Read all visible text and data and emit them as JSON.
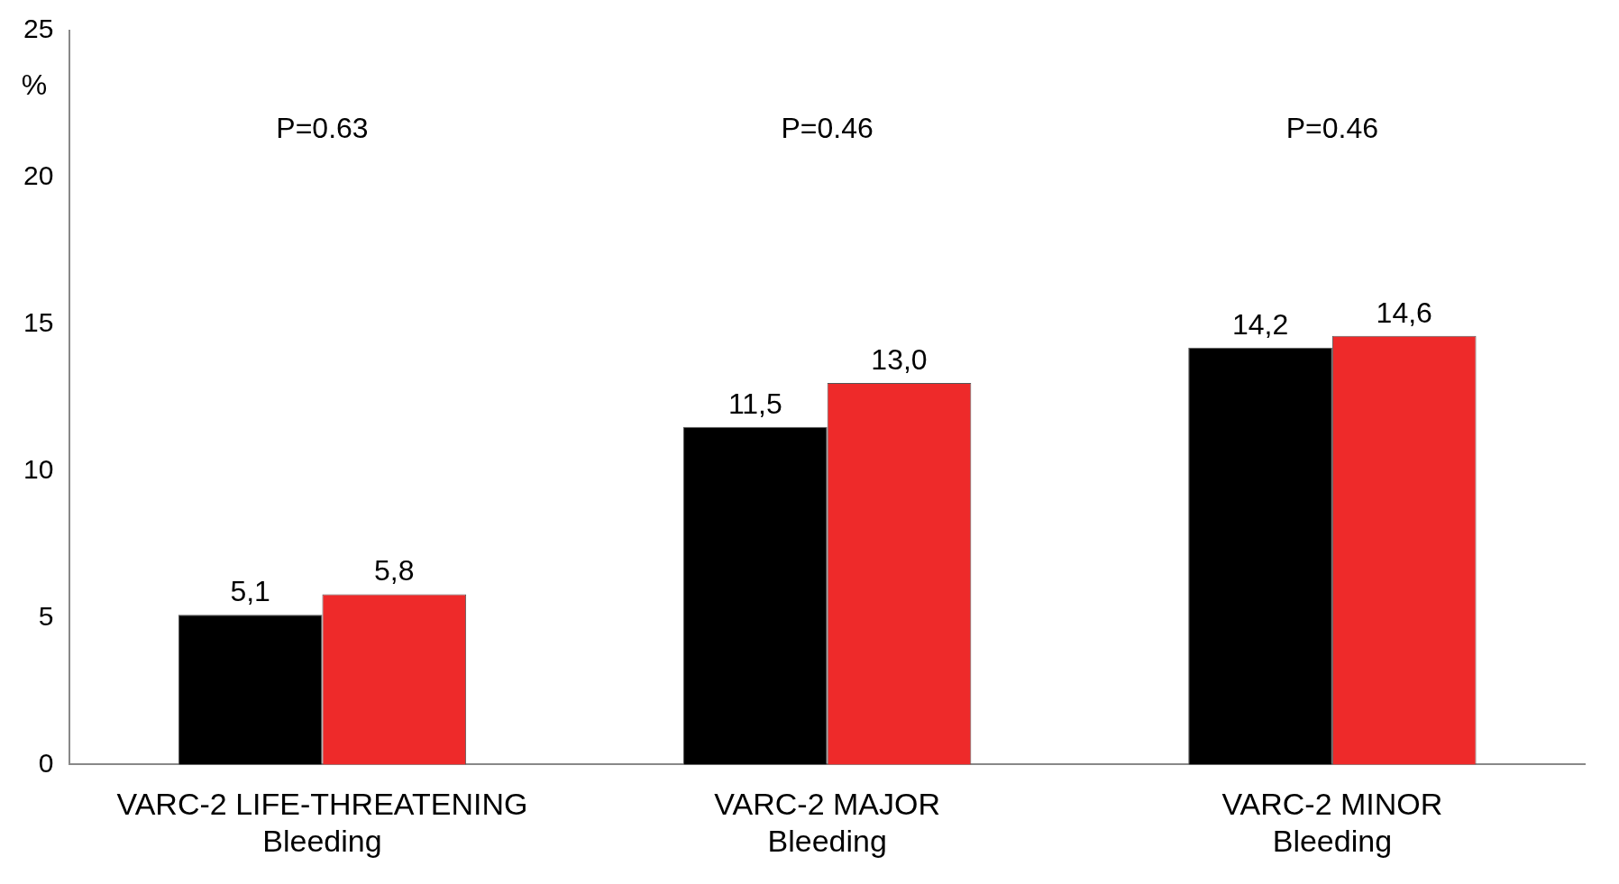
{
  "chart_data": {
    "type": "bar",
    "ylabel": "%",
    "categories": [
      "VARC-2 LIFE-THREATENING Bleeding",
      "VARC-2 MAJOR Bleeding",
      "VARC-2 MINOR Bleeding"
    ],
    "series": [
      {
        "color": "#000000",
        "values": [
          5.1,
          11.5,
          14.2
        ],
        "value_labels": [
          "5,1",
          "11,5",
          "14,2"
        ]
      },
      {
        "color": "#ee2a2a",
        "values": [
          5.8,
          13.0,
          14.6
        ],
        "value_labels": [
          "5,8",
          "13,0",
          "14,6"
        ]
      }
    ],
    "ylim": [
      0,
      25
    ],
    "yticks": [
      0,
      5,
      10,
      15,
      20,
      25
    ],
    "grid": false,
    "legend": false,
    "annotations": [
      "P=0.63",
      "P=0.46",
      "P=0.46"
    ]
  }
}
